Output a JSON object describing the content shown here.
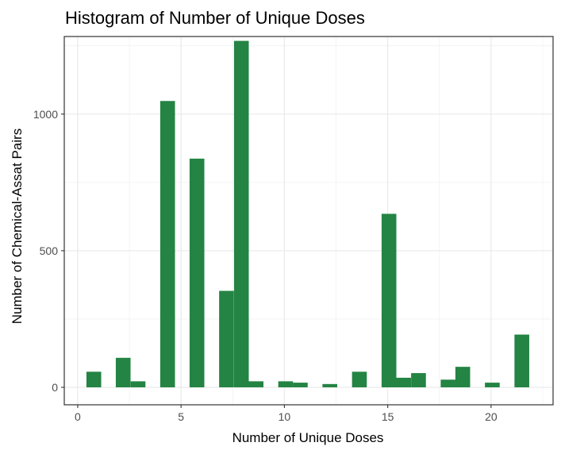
{
  "chart_data": {
    "type": "bar",
    "title": "Histogram of Number of Unique Doses",
    "xlabel": "Number of Unique Doses",
    "ylabel": "Number of Chemical-Assat Pairs",
    "xlim": [
      -0.65,
      23.0
    ],
    "ylim": [
      -64,
      1284
    ],
    "x_ticks": [
      0,
      5,
      10,
      15,
      20
    ],
    "y_ticks": [
      0,
      500,
      1000
    ],
    "x_minor_grid": [
      2.5,
      7.5,
      12.5,
      17.5,
      22.5
    ],
    "y_minor_grid": [
      250,
      750,
      1250
    ],
    "grid": true,
    "bar_width": 0.714,
    "bar_color": "#238443",
    "bins": [
      {
        "x": 0.78,
        "value": 57
      },
      {
        "x": 2.2,
        "value": 108
      },
      {
        "x": 2.92,
        "value": 22
      },
      {
        "x": 4.35,
        "value": 1048
      },
      {
        "x": 5.77,
        "value": 837
      },
      {
        "x": 7.2,
        "value": 353
      },
      {
        "x": 7.92,
        "value": 1268
      },
      {
        "x": 8.63,
        "value": 22
      },
      {
        "x": 10.06,
        "value": 22
      },
      {
        "x": 10.77,
        "value": 17
      },
      {
        "x": 12.2,
        "value": 12
      },
      {
        "x": 13.63,
        "value": 57
      },
      {
        "x": 15.06,
        "value": 635
      },
      {
        "x": 15.77,
        "value": 35
      },
      {
        "x": 16.49,
        "value": 52
      },
      {
        "x": 17.92,
        "value": 28
      },
      {
        "x": 18.63,
        "value": 75
      },
      {
        "x": 20.06,
        "value": 17
      },
      {
        "x": 21.49,
        "value": 193
      }
    ]
  }
}
